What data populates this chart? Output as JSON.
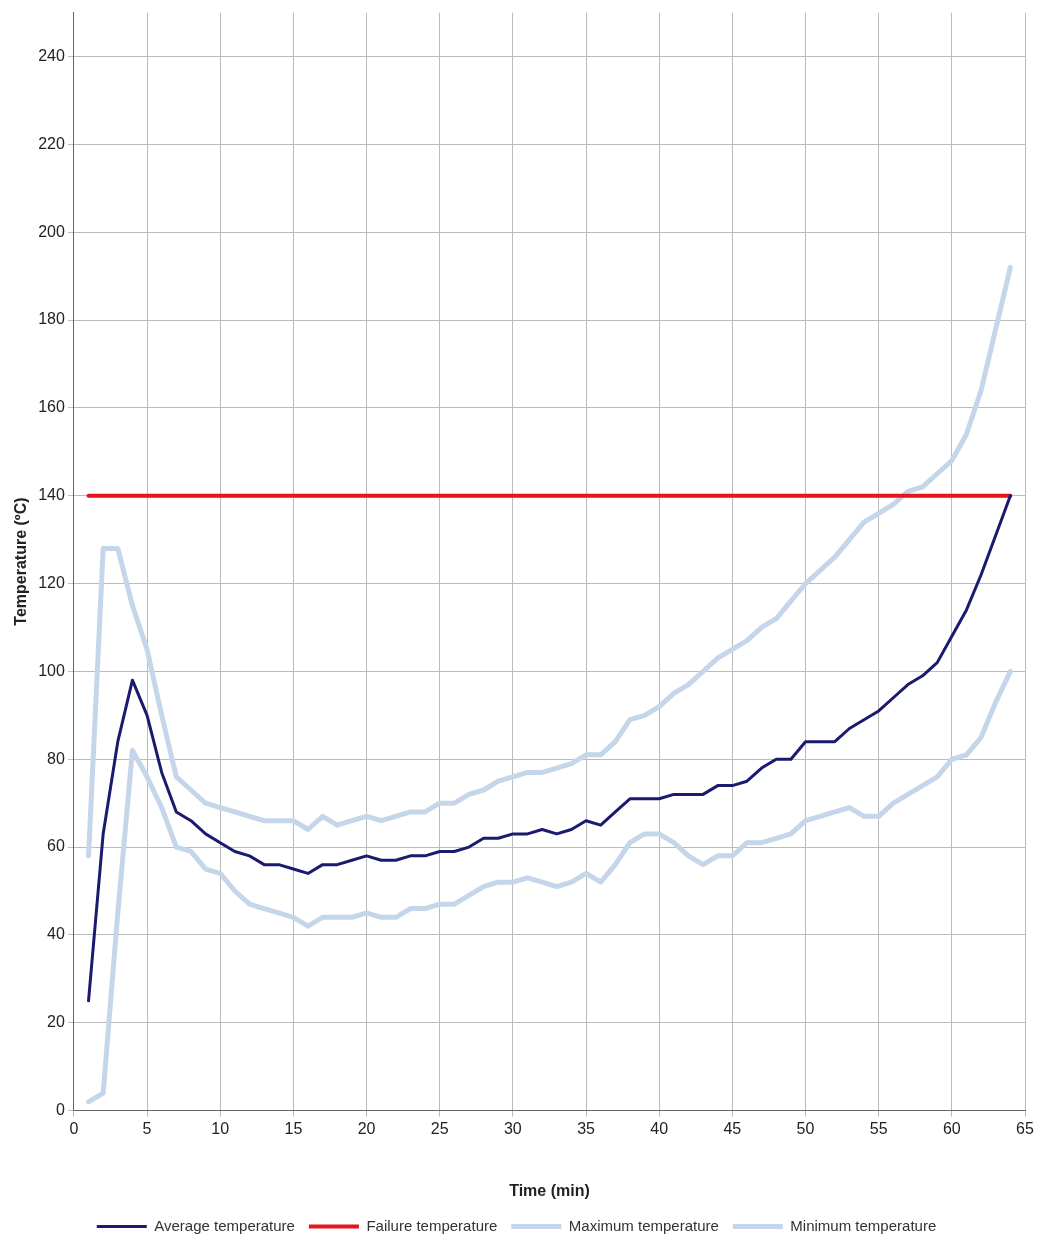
{
  "chart_data": {
    "type": "line",
    "xlabel": "Time (min)",
    "ylabel": "Temperature (ºC)",
    "x": [
      1,
      2,
      3,
      4,
      5,
      6,
      7,
      8,
      9,
      10,
      11,
      12,
      13,
      14,
      15,
      16,
      17,
      18,
      19,
      20,
      21,
      22,
      23,
      24,
      25,
      26,
      27,
      28,
      29,
      30,
      31,
      32,
      33,
      34,
      35,
      36,
      37,
      38,
      39,
      40,
      41,
      42,
      43,
      44,
      45,
      46,
      47,
      48,
      49,
      50,
      51,
      52,
      53,
      54,
      55,
      56,
      57,
      58,
      59,
      60,
      61,
      62,
      63,
      64
    ],
    "series": [
      {
        "name": "Average temperature",
        "color": "#1a1a6e",
        "values": [
          25,
          63,
          84,
          98,
          90,
          77,
          68,
          66,
          63,
          61,
          59,
          58,
          56,
          56,
          55,
          54,
          56,
          56,
          57,
          58,
          57,
          57,
          58,
          58,
          59,
          59,
          60,
          62,
          62,
          63,
          63,
          64,
          63,
          64,
          66,
          65,
          68,
          71,
          71,
          71,
          72,
          72,
          72,
          74,
          74,
          75,
          78,
          80,
          80,
          84,
          84,
          84,
          87,
          89,
          91,
          94,
          97,
          99,
          102,
          108,
          114,
          122,
          131,
          140
        ]
      },
      {
        "name": "Failure temperature",
        "color": "#e8141b",
        "x": [
          1,
          64
        ],
        "values": [
          140,
          140
        ]
      },
      {
        "name": "Maximum temperature",
        "color": "#c5d5ea",
        "values": [
          58,
          128,
          128,
          115,
          105,
          90,
          76,
          73,
          70,
          69,
          68,
          67,
          66,
          66,
          66,
          64,
          67,
          65,
          66,
          67,
          66,
          67,
          68,
          68,
          70,
          70,
          72,
          73,
          75,
          76,
          77,
          77,
          78,
          79,
          81,
          81,
          84,
          89,
          90,
          92,
          95,
          97,
          100,
          103,
          105,
          107,
          110,
          112,
          116,
          120,
          123,
          126,
          130,
          134,
          136,
          138,
          141,
          142,
          145,
          148,
          154,
          164,
          178,
          192
        ]
      },
      {
        "name": "Minimum temperature",
        "color": "#c5d5ea",
        "values": [
          2,
          4,
          45,
          82,
          76,
          69,
          60,
          59,
          55,
          54,
          50,
          47,
          46,
          45,
          44,
          42,
          44,
          44,
          44,
          45,
          44,
          44,
          46,
          46,
          47,
          47,
          49,
          51,
          52,
          52,
          53,
          52,
          51,
          52,
          54,
          52,
          56,
          61,
          63,
          63,
          61,
          58,
          56,
          58,
          58,
          61,
          61,
          62,
          63,
          66,
          67,
          68,
          69,
          67,
          67,
          70,
          72,
          74,
          76,
          80,
          81,
          85,
          93,
          100
        ]
      }
    ],
    "xlim": [
      0,
      65
    ],
    "xticks": [
      0,
      5,
      10,
      15,
      20,
      25,
      30,
      35,
      40,
      45,
      50,
      55,
      60,
      65
    ],
    "ylim": [
      0,
      250
    ],
    "yticks": [
      0,
      20,
      40,
      60,
      80,
      100,
      120,
      140,
      160,
      180,
      200,
      220,
      240
    ],
    "grid": true,
    "legend": "bottom",
    "marker": "none",
    "line_style": "solid"
  }
}
